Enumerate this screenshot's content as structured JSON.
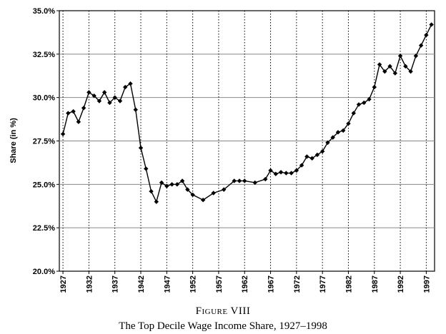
{
  "figure": {
    "label": "Figure VIII",
    "title": "The Top Decile Wage Income Share, 1927–1998"
  },
  "chart_data": {
    "type": "line",
    "ylabel": "Share (in %)",
    "xlabel": "",
    "xlim": [
      1927,
      1998
    ],
    "ylim": [
      20,
      35
    ],
    "y_ticks": [
      "20.0%",
      "22.5%",
      "25.0%",
      "27.5%",
      "30.0%",
      "32.5%",
      "35.0%"
    ],
    "x_ticks": [
      "1927",
      "1932",
      "1937",
      "1942",
      "1947",
      "1952",
      "1957",
      "1962",
      "1967",
      "1972",
      "1977",
      "1982",
      "1987",
      "1992",
      "1997"
    ],
    "grid": {
      "horizontal": "solid",
      "vertical": "dotted"
    },
    "marker": "diamond",
    "line_color": "#000000",
    "series": [
      {
        "x": [
          1927,
          1928,
          1929,
          1930,
          1931,
          1932,
          1933,
          1934,
          1935,
          1936,
          1937,
          1938,
          1939,
          1940,
          1941,
          1942,
          1943,
          1944,
          1945,
          1946,
          1947,
          1948,
          1949,
          1950,
          1951,
          1952,
          1954,
          1956,
          1958,
          1960,
          1961,
          1962,
          1964,
          1966,
          1967,
          1968,
          1969,
          1970,
          1971,
          1972,
          1973,
          1974,
          1975,
          1976,
          1977,
          1978,
          1979,
          1980,
          1981,
          1982,
          1983,
          1984,
          1985,
          1986,
          1987,
          1988,
          1989,
          1990,
          1991,
          1992,
          1993,
          1994,
          1995,
          1996,
          1997,
          1998
        ],
        "y": [
          27.9,
          29.1,
          29.2,
          28.6,
          29.4,
          30.3,
          30.1,
          29.8,
          30.3,
          29.7,
          30.0,
          29.8,
          30.6,
          30.8,
          29.3,
          27.1,
          25.9,
          24.6,
          24.0,
          25.1,
          24.9,
          25.0,
          25.0,
          25.2,
          24.7,
          24.4,
          24.1,
          24.5,
          24.7,
          25.2,
          25.2,
          25.2,
          25.1,
          25.3,
          25.8,
          25.6,
          25.7,
          25.65,
          25.65,
          25.8,
          26.1,
          26.6,
          26.5,
          26.7,
          26.9,
          27.4,
          27.7,
          28.0,
          28.1,
          28.5,
          29.1,
          29.6,
          29.7,
          29.9,
          30.6,
          31.9,
          31.5,
          31.8,
          31.4,
          32.4,
          31.8,
          31.5,
          32.4,
          33.0,
          33.6,
          34.2
        ]
      }
    ]
  }
}
